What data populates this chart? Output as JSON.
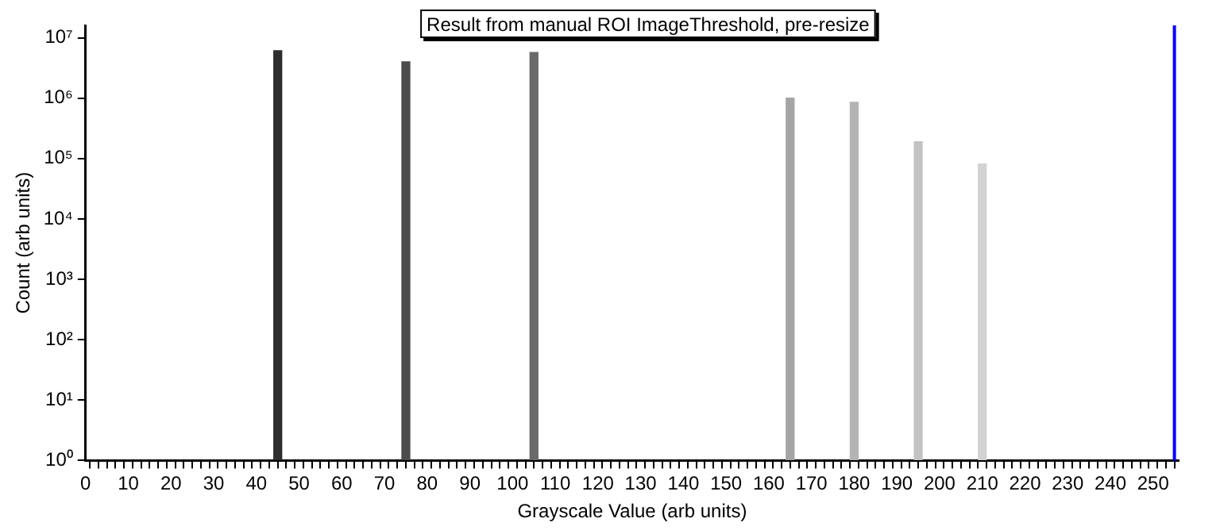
{
  "chart_data": {
    "type": "bar",
    "title": "Result from manual ROI ImageThreshold, pre-resize",
    "xlabel": "Grayscale Value (arb units)",
    "ylabel": "Count (arb units)",
    "x": [
      45,
      75,
      105,
      165,
      180,
      195,
      210
    ],
    "values": [
      6100000,
      4000000,
      5700000,
      1000000,
      850000,
      190000,
      81000
    ],
    "colors": [
      "#2d2d2d",
      "#4b4b4b",
      "#696969",
      "#a5a5a5",
      "#b4b4b4",
      "#c3c3c3",
      "#d2d2d2"
    ],
    "log": "y",
    "grid": false,
    "legend": false,
    "xlim": [
      0,
      256
    ],
    "ylim": [
      1,
      16000000
    ],
    "xticks": [
      0,
      {
        "value": 2,
        "label": null
      },
      {
        "value": 4,
        "label": null
      },
      {
        "value": 6,
        "label": null
      },
      {
        "value": 8,
        "label": null
      },
      10,
      {
        "value": 12,
        "label": null
      },
      {
        "value": 14,
        "label": null
      },
      {
        "value": 16,
        "label": null
      },
      {
        "value": 18,
        "label": null
      },
      20,
      {
        "value": 22,
        "label": null
      },
      {
        "value": 24,
        "label": null
      },
      {
        "value": 26,
        "label": null
      },
      {
        "value": 28,
        "label": null
      },
      30,
      {
        "value": 32,
        "label": null
      },
      {
        "value": 34,
        "label": null
      },
      {
        "value": 36,
        "label": null
      },
      {
        "value": 38,
        "label": null
      },
      40,
      {
        "value": 42,
        "label": null
      },
      {
        "value": 44,
        "label": null
      },
      {
        "value": 46,
        "label": null
      },
      {
        "value": 48,
        "label": null
      },
      50,
      {
        "value": 52,
        "label": null
      },
      {
        "value": 54,
        "label": null
      },
      {
        "value": 56,
        "label": null
      },
      {
        "value": 58,
        "label": null
      },
      60,
      {
        "value": 62,
        "label": null
      },
      {
        "value": 64,
        "label": null
      },
      {
        "value": 66,
        "label": null
      },
      {
        "value": 68,
        "label": null
      },
      70,
      {
        "value": 72,
        "label": null
      },
      {
        "value": 74,
        "label": null
      },
      {
        "value": 76,
        "label": null
      },
      {
        "value": 78,
        "label": null
      },
      80,
      {
        "value": 82,
        "label": null
      },
      {
        "value": 84,
        "label": null
      },
      {
        "value": 86,
        "label": null
      },
      {
        "value": 88,
        "label": null
      },
      90,
      {
        "value": 92,
        "label": null
      },
      {
        "value": 94,
        "label": null
      },
      {
        "value": 96,
        "label": null
      },
      {
        "value": 98,
        "label": null
      },
      100,
      {
        "value": 102,
        "label": null
      },
      {
        "value": 104,
        "label": null
      },
      {
        "value": 106,
        "label": null
      },
      {
        "value": 108,
        "label": null
      },
      110,
      {
        "value": 112,
        "label": null
      },
      {
        "value": 114,
        "label": null
      },
      {
        "value": 116,
        "label": null
      },
      {
        "value": 118,
        "label": null
      },
      120,
      {
        "value": 122,
        "label": null
      },
      {
        "value": 124,
        "label": null
      },
      {
        "value": 126,
        "label": null
      },
      {
        "value": 128,
        "label": null
      },
      130,
      {
        "value": 132,
        "label": null
      },
      {
        "value": 134,
        "label": null
      },
      {
        "value": 136,
        "label": null
      },
      {
        "value": 138,
        "label": null
      },
      140,
      {
        "value": 142,
        "label": null
      },
      {
        "value": 144,
        "label": null
      },
      {
        "value": 146,
        "label": null
      },
      {
        "value": 148,
        "label": null
      },
      150,
      {
        "value": 152,
        "label": null
      },
      {
        "value": 154,
        "label": null
      },
      {
        "value": 156,
        "label": null
      },
      {
        "value": 158,
        "label": null
      },
      160,
      {
        "value": 162,
        "label": null
      },
      {
        "value": 164,
        "label": null
      },
      {
        "value": 166,
        "label": null
      },
      {
        "value": 168,
        "label": null
      },
      170,
      {
        "value": 172,
        "label": null
      },
      {
        "value": 174,
        "label": null
      },
      {
        "value": 176,
        "label": null
      },
      {
        "value": 178,
        "label": null
      },
      180,
      {
        "value": 182,
        "label": null
      },
      {
        "value": 184,
        "label": null
      },
      {
        "value": 186,
        "label": null
      },
      {
        "value": 188,
        "label": null
      },
      190,
      {
        "value": 192,
        "label": null
      },
      {
        "value": 194,
        "label": null
      },
      {
        "value": 196,
        "label": null
      },
      {
        "value": 198,
        "label": null
      },
      200,
      {
        "value": 202,
        "label": null
      },
      {
        "value": 204,
        "label": null
      },
      {
        "value": 206,
        "label": null
      },
      {
        "value": 208,
        "label": null
      },
      210,
      {
        "value": 212,
        "label": null
      },
      {
        "value": 214,
        "label": null
      },
      {
        "value": 216,
        "label": null
      },
      {
        "value": 218,
        "label": null
      },
      220,
      {
        "value": 222,
        "label": null
      },
      {
        "value": 224,
        "label": null
      },
      {
        "value": 226,
        "label": null
      },
      {
        "value": 228,
        "label": null
      },
      230,
      {
        "value": 232,
        "label": null
      },
      {
        "value": 234,
        "label": null
      },
      {
        "value": 236,
        "label": null
      },
      {
        "value": 238,
        "label": null
      },
      240,
      {
        "value": 242,
        "label": null
      },
      {
        "value": 244,
        "label": null
      },
      {
        "value": 246,
        "label": null
      },
      {
        "value": 248,
        "label": null
      },
      250,
      {
        "value": 252,
        "label": null
      },
      {
        "value": 254,
        "label": null
      }
    ],
    "yticks": [
      {
        "value": 1,
        "label": "10⁰"
      },
      {
        "value": 10,
        "label": "10¹"
      },
      {
        "value": 100,
        "label": "10²"
      },
      {
        "value": 1000,
        "label": "10³"
      },
      {
        "value": 10000,
        "label": "10⁴"
      },
      {
        "value": 100000,
        "label": "10⁵"
      },
      {
        "value": 1000000,
        "label": "10⁶"
      },
      {
        "value": 10000000,
        "label": "10⁷"
      }
    ],
    "ref_lines": [
      {
        "axis": "x",
        "value": 255,
        "color": "#0000ff"
      }
    ]
  }
}
